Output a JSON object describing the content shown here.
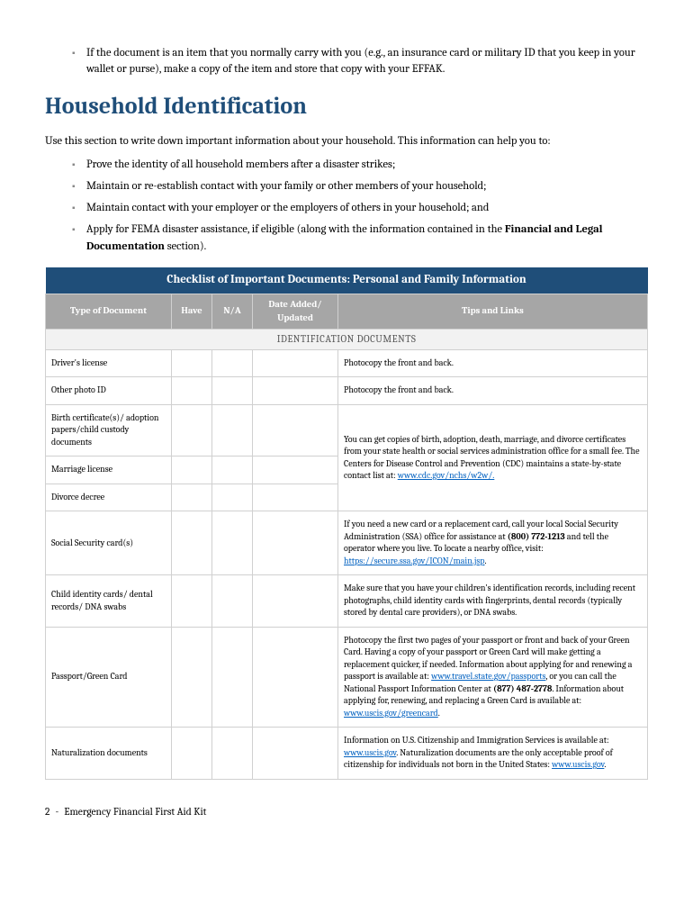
{
  "top_bullet": "If the document is an item that you normally carry with you (e.g., an insurance card or military ID that you keep in your wallet or purse), make a copy of the item and store that copy with your EFFAK.",
  "heading": "Household Identification",
  "intro": "Use this section to write down important information about your household. This information can help you to:",
  "purposes": {
    "p1": "Prove the identity of all household members after a disaster strikes;",
    "p2": "Maintain or re-establish contact with your family or other members of your household;",
    "p3": "Maintain contact with your employer or the employers of others in your household; and",
    "p4_pre": "Apply for FEMA disaster assistance, if eligible (along with the information contained in the ",
    "p4_bold": "Financial and Legal Documentation",
    "p4_post": " section)."
  },
  "table": {
    "title": "Checklist of Important Documents: Personal and Family Information",
    "cols": {
      "type": "Type of Document",
      "have": "Have",
      "na": "N/A",
      "date": "Date Added/ Updated",
      "tips": "Tips and Links"
    },
    "section_label": "IDENTIFICATION DOCUMENTS",
    "rows": {
      "r1_type": "Driver's license",
      "r1_tip": "Photocopy the front and back.",
      "r2_type": "Other photo ID",
      "r2_tip": "Photocopy the front and back.",
      "r3_type": "Birth certificate(s)/ adoption papers/child custody documents",
      "r4_type": "Marriage license",
      "r5_type": "Divorce decree",
      "r345_tip_pre": "You can get copies of birth, adoption, death, marriage, and divorce certificates from your state health or social services administration office for a small fee. The Centers for Disease Control and Prevention (CDC) maintains a state-by-state contact list at: ",
      "r345_link": "www.cdc.gov/nchs/w2w/.",
      "r6_type": "Social Security card(s)",
      "r6_tip_pre": "If you need a new card or a replacement card, call your local Social Security Administration (SSA) office for assistance at ",
      "r6_phone": "(800) 772-1213",
      "r6_tip_mid": " and tell the operator where you live. To locate a nearby office, visit: ",
      "r6_link": "https://secure.ssa.gov/ICON/main.jsp",
      "r6_period": ".",
      "r7_type": "Child identity cards/ dental records/ DNA swabs",
      "r7_tip": "Make sure that you have your children's identification records, including recent photographs, child identity cards with fingerprints, dental records (typically stored by dental care providers), or DNA swabs.",
      "r8_type": "Passport/Green Card",
      "r8_tip_pre": "Photocopy the first two pages of your passport or front and back of your Green Card. Having a copy of your passport or Green Card will make getting a replacement quicker, if needed. Information about applying for and renewing a passport is available at: ",
      "r8_link1": "www.travel.state.gov/passports",
      "r8_tip_mid1": ", or you can call the National Passport Information Center at ",
      "r8_phone": "(877) 487-2778",
      "r8_tip_mid2": ". Information about applying for, renewing, and replacing a Green Card is available at: ",
      "r8_link2": "www.uscis.gov/greencard",
      "r8_period": ".",
      "r9_type": "Naturalization documents",
      "r9_tip_pre": "Information on U.S. Citizenship and Immigration Services is available at: ",
      "r9_link1": "www.uscis.gov",
      "r9_tip_mid": ". Naturalization documents are the only acceptable proof of citizenship for individuals not born in the United States: ",
      "r9_link2": "www.uscis.gov",
      "r9_period": "."
    }
  },
  "footer": {
    "page": "2",
    "sep": " - ",
    "title": "Emergency Financial First Aid Kit"
  },
  "colors": {
    "heading": "#1f4e79",
    "table_header_bg": "#1f4e79",
    "col_header_bg": "#a6a6a6",
    "section_bg": "#f2f2f2",
    "link": "#0563c1",
    "border": "#d0d0d0"
  }
}
